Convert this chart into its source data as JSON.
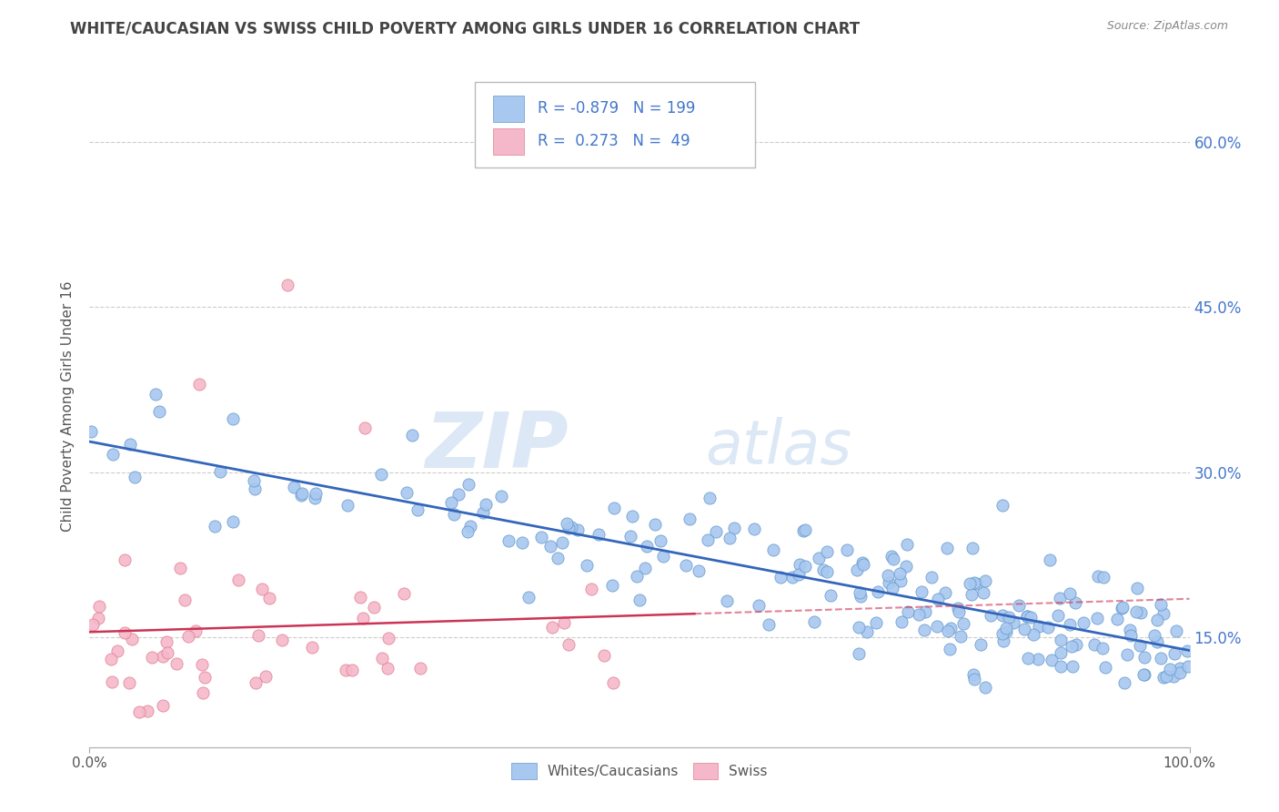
{
  "title": "WHITE/CAUCASIAN VS SWISS CHILD POVERTY AMONG GIRLS UNDER 16 CORRELATION CHART",
  "source": "Source: ZipAtlas.com",
  "ylabel": "Child Poverty Among Girls Under 16",
  "blue_R": -0.879,
  "blue_N": 199,
  "pink_R": 0.273,
  "pink_N": 49,
  "blue_dot_color": "#A8C8F0",
  "pink_dot_color": "#F5B8CB",
  "blue_edge_color": "#6699CC",
  "pink_edge_color": "#E08090",
  "blue_line_color": "#3366BB",
  "pink_line_color": "#CC3355",
  "xlim": [
    0,
    100
  ],
  "ylim": [
    5,
    67
  ],
  "yticks": [
    15.0,
    30.0,
    45.0,
    60.0
  ],
  "xticks": [
    0.0,
    100.0
  ],
  "watermark_zip": "ZIP",
  "watermark_atlas": "atlas",
  "background_color": "#ffffff",
  "grid_color": "#cccccc",
  "title_color": "#444444",
  "axis_label_color": "#555555",
  "legend_color": "#4477CC",
  "watermark_color": "#dce8f5"
}
